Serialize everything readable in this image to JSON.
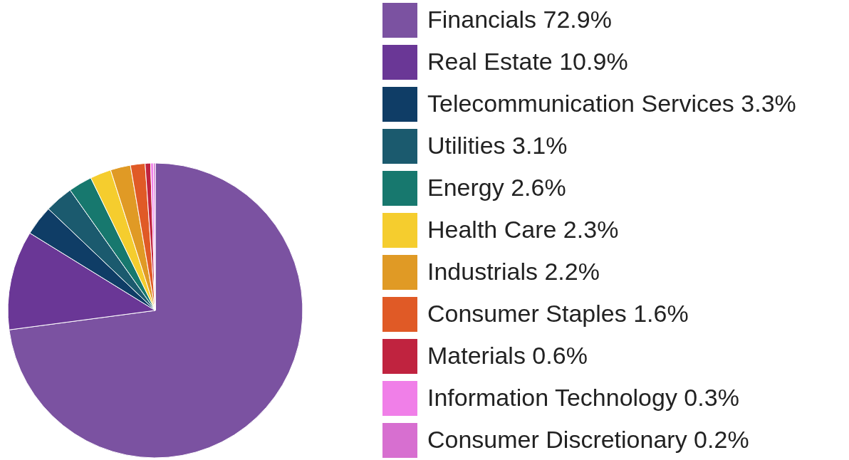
{
  "chart_data": {
    "type": "pie",
    "legend": "right",
    "categories": [
      "Financials",
      "Real Estate",
      "Telecommunication Services",
      "Utilities",
      "Energy",
      "Health Care",
      "Industrials",
      "Consumer Staples",
      "Materials",
      "Information Technology",
      "Consumer Discretionary"
    ],
    "values": [
      72.9,
      10.9,
      3.3,
      3.1,
      2.6,
      2.3,
      2.2,
      1.6,
      0.6,
      0.3,
      0.2
    ],
    "value_labels": [
      "72.9%",
      "10.9%",
      "3.3%",
      "3.1%",
      "2.6%",
      "2.3%",
      "2.2%",
      "1.6%",
      "0.6%",
      "0.3%",
      "0.2%"
    ],
    "colors": [
      "#7b52a1",
      "#6a3796",
      "#0f3d66",
      "#1b5a6e",
      "#17786e",
      "#f5cd2e",
      "#e09a25",
      "#e05a26",
      "#c0233f",
      "#f07fe8",
      "#d76fd0"
    ]
  }
}
